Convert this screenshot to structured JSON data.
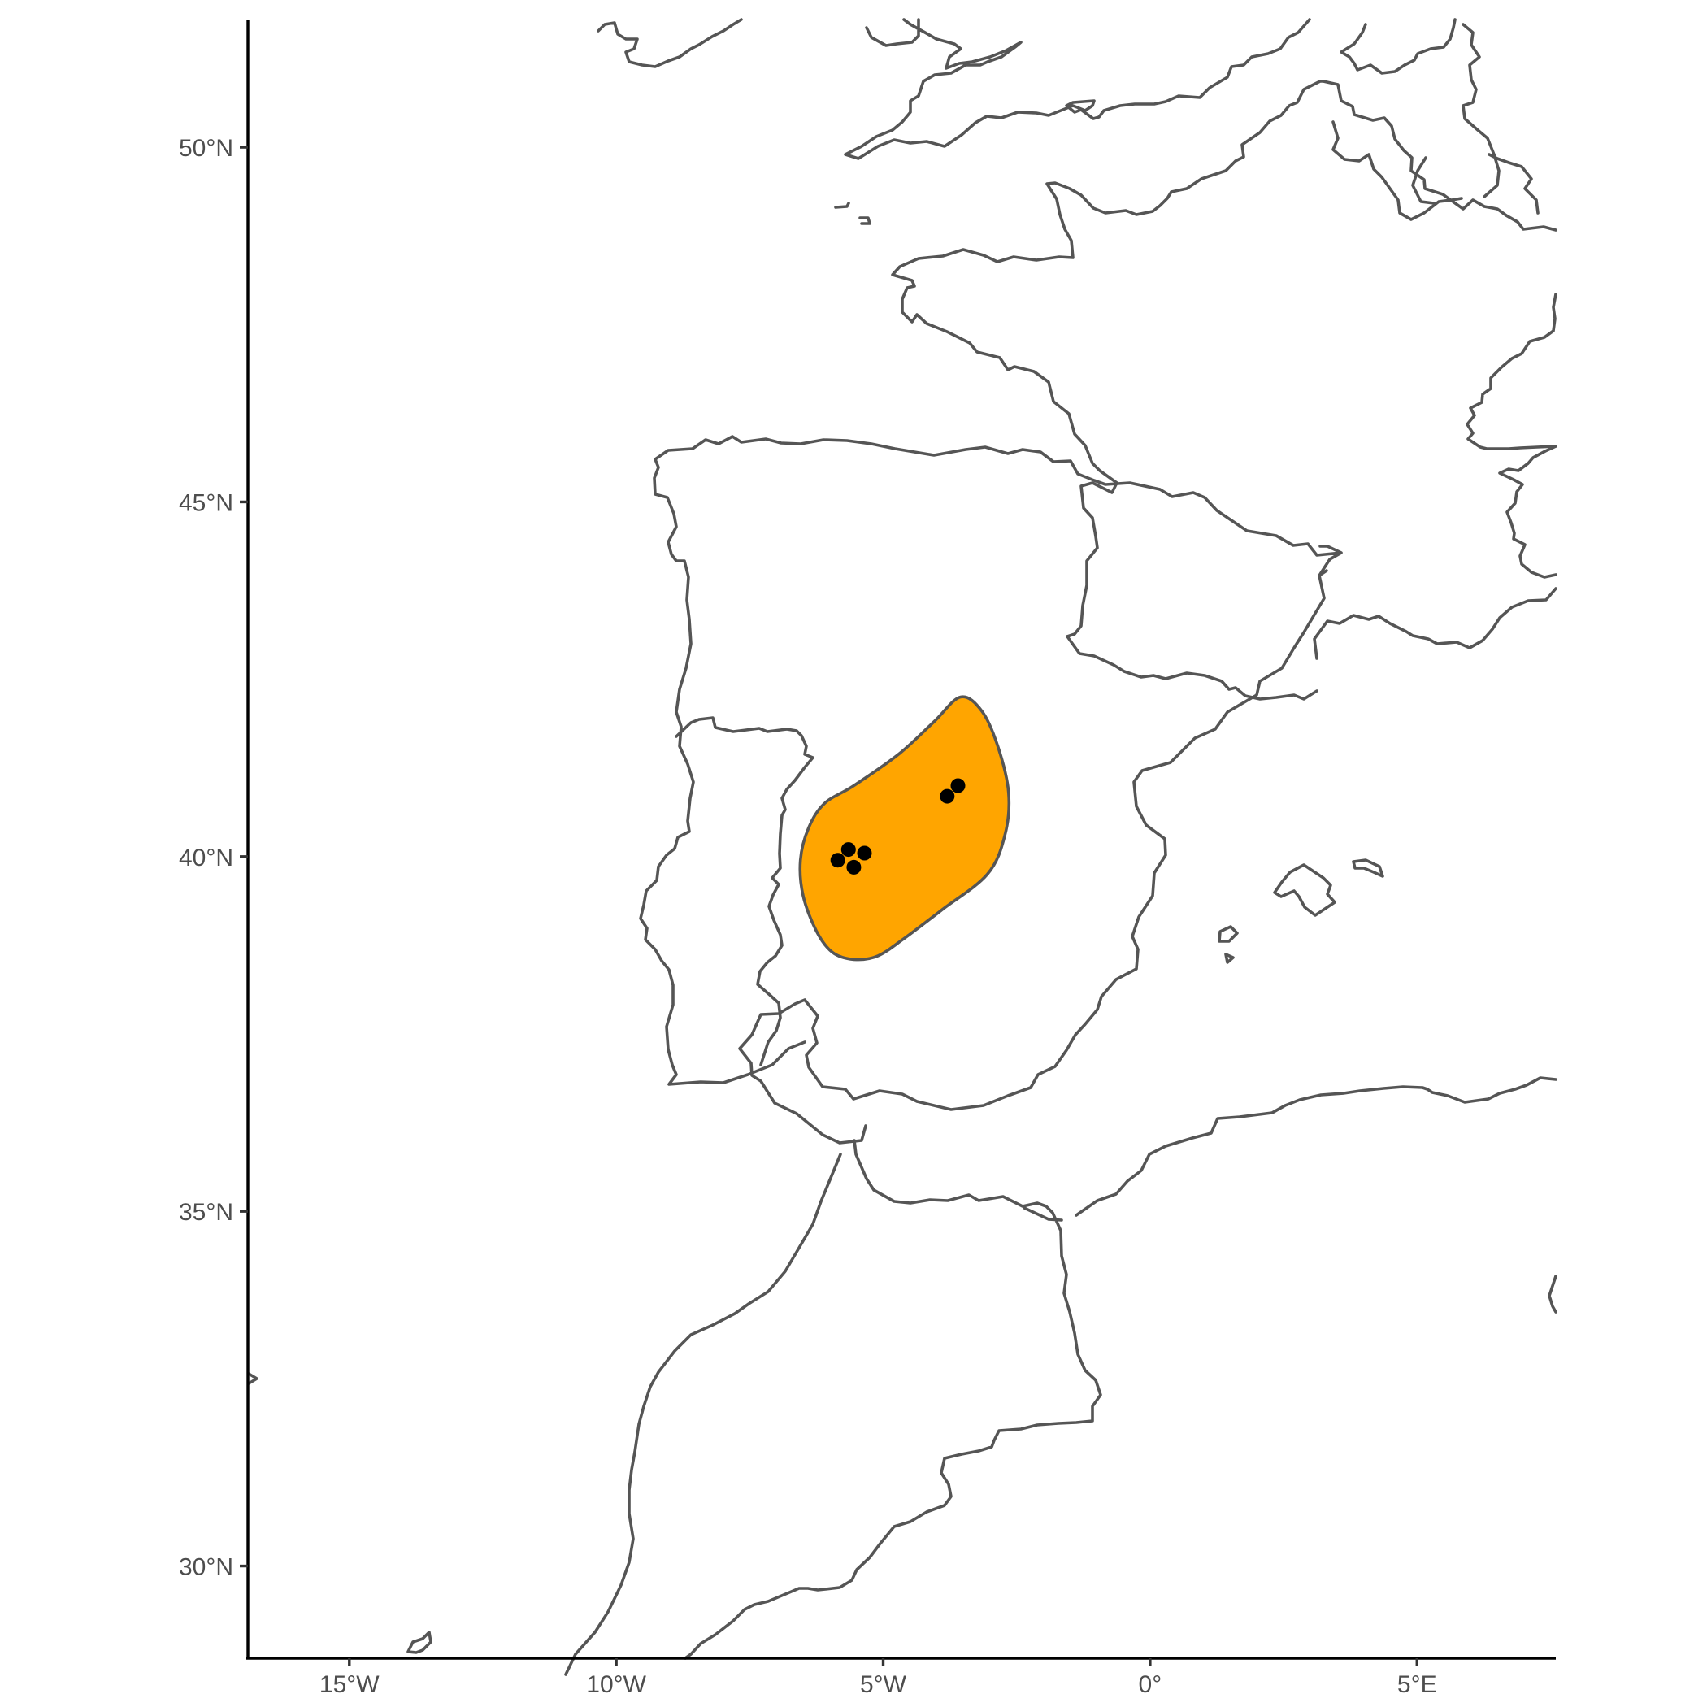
{
  "map": {
    "type": "range-map",
    "x_axis": {
      "ticks": [
        {
          "value": -15,
          "label": "15°W"
        },
        {
          "value": -10,
          "label": "10°W"
        },
        {
          "value": -5,
          "label": "5°W"
        },
        {
          "value": 0,
          "label": "0°"
        },
        {
          "value": 5,
          "label": "5°E"
        }
      ]
    },
    "y_axis": {
      "ticks": [
        {
          "value": 50,
          "label": "50°N"
        },
        {
          "value": 45,
          "label": "45°N"
        },
        {
          "value": 40,
          "label": "40°N"
        },
        {
          "value": 35,
          "label": "35°N"
        },
        {
          "value": 30,
          "label": "30°N"
        }
      ]
    },
    "xlim": [
      -16.9,
      7.6
    ],
    "ylim": [
      28.7,
      51.8
    ],
    "range_polygon": {
      "fill": "#FFA500",
      "stroke": "#555555",
      "lonlat": [
        [
          -3.55,
          42.25
        ],
        [
          -3.15,
          42.05
        ],
        [
          -2.85,
          41.55
        ],
        [
          -2.65,
          40.9
        ],
        [
          -2.72,
          40.3
        ],
        [
          -3.05,
          39.75
        ],
        [
          -3.9,
          39.25
        ],
        [
          -4.6,
          38.85
        ],
        [
          -5.1,
          38.6
        ],
        [
          -5.55,
          38.55
        ],
        [
          -5.95,
          38.65
        ],
        [
          -6.25,
          38.95
        ],
        [
          -6.5,
          39.45
        ],
        [
          -6.55,
          39.95
        ],
        [
          -6.4,
          40.4
        ],
        [
          -6.1,
          40.75
        ],
        [
          -5.55,
          41.0
        ],
        [
          -4.7,
          41.45
        ],
        [
          -4.05,
          41.9
        ]
      ]
    },
    "occurrence_points": [
      {
        "lon": -5.85,
        "lat": 39.95
      },
      {
        "lon": -5.65,
        "lat": 40.1
      },
      {
        "lon": -5.55,
        "lat": 39.85
      },
      {
        "lon": -5.35,
        "lat": 40.05
      },
      {
        "lon": -3.8,
        "lat": 40.85
      },
      {
        "lon": -3.6,
        "lat": 41.0
      }
    ],
    "point_color": "#000000"
  }
}
